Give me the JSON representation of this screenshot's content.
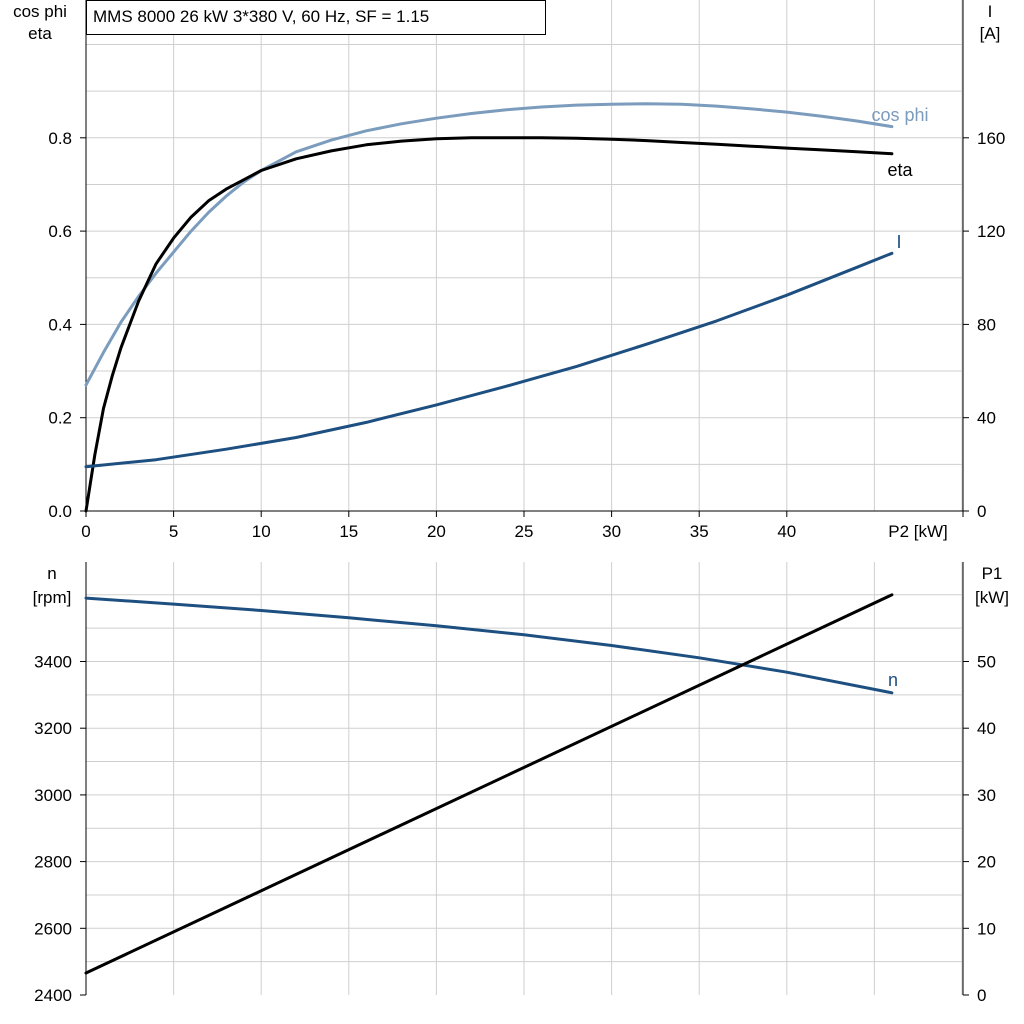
{
  "chart_data": [
    {
      "type": "line",
      "title": "MMS 8000   26 kW   3*380 V, 60 Hz, SF = 1.15",
      "xlabel": "P2 [kW]",
      "xlim": [
        0,
        50
      ],
      "x_ticks": [
        "0",
        "5",
        "10",
        "15",
        "20",
        "25",
        "30",
        "35",
        "40"
      ],
      "ylabel_left": [
        "cos phi",
        "eta"
      ],
      "ylim_left": [
        0,
        1.0
      ],
      "y_ticks_left": [
        "0.0",
        "0.2",
        "0.4",
        "0.6",
        "0.8"
      ],
      "ylabel_right": [
        "I",
        "[A]"
      ],
      "ylim_right": [
        0,
        200
      ],
      "y_ticks_right": [
        "0",
        "40",
        "80",
        "120",
        "160"
      ],
      "grid": true,
      "series": [
        {
          "name": "cos phi",
          "axis": "left",
          "color": "#7b9cbc",
          "x": [
            0,
            1,
            2,
            3,
            4,
            5,
            6,
            7,
            8,
            9,
            10,
            12,
            14,
            16,
            18,
            20,
            22,
            24,
            26,
            28,
            30,
            32,
            34,
            36,
            38,
            40,
            42,
            44,
            46
          ],
          "y": [
            0.27,
            0.34,
            0.405,
            0.46,
            0.51,
            0.555,
            0.6,
            0.64,
            0.675,
            0.705,
            0.73,
            0.77,
            0.795,
            0.815,
            0.83,
            0.842,
            0.852,
            0.86,
            0.866,
            0.87,
            0.872,
            0.873,
            0.872,
            0.868,
            0.862,
            0.855,
            0.846,
            0.836,
            0.824
          ]
        },
        {
          "name": "eta",
          "axis": "left",
          "color": "#000000",
          "x": [
            0,
            0.5,
            1,
            1.5,
            2,
            3,
            4,
            5,
            6,
            7,
            8,
            9,
            10,
            12,
            14,
            16,
            18,
            20,
            22,
            24,
            26,
            28,
            30,
            32,
            34,
            36,
            38,
            40,
            42,
            44,
            46
          ],
          "y": [
            0,
            0.12,
            0.22,
            0.29,
            0.35,
            0.45,
            0.53,
            0.585,
            0.63,
            0.665,
            0.69,
            0.71,
            0.73,
            0.755,
            0.772,
            0.785,
            0.793,
            0.798,
            0.8,
            0.8,
            0.8,
            0.799,
            0.797,
            0.794,
            0.79,
            0.786,
            0.782,
            0.778,
            0.774,
            0.77,
            0.766
          ]
        },
        {
          "name": "I",
          "axis": "right",
          "color": "#1d4f80",
          "x": [
            0,
            4,
            8,
            12,
            16,
            20,
            24,
            28,
            32,
            36,
            40,
            44,
            46
          ],
          "y": [
            19,
            22,
            26.5,
            31.5,
            38,
            45.5,
            53.5,
            62,
            71.5,
            81.5,
            92.5,
            104.5,
            110.5
          ]
        }
      ]
    },
    {
      "type": "line",
      "xlim": [
        0,
        50
      ],
      "ylabel_left": [
        "n",
        "[rpm]"
      ],
      "ylim_left": [
        2400,
        3700
      ],
      "y_ticks_left": [
        "2400",
        "2600",
        "2800",
        "3000",
        "3200",
        "3400"
      ],
      "ylabel_right": [
        "P1",
        "[kW]"
      ],
      "ylim_right": [
        0,
        65
      ],
      "y_ticks_right": [
        "0",
        "10",
        "20",
        "30",
        "40",
        "50"
      ],
      "grid": true,
      "series": [
        {
          "name": "n",
          "axis": "left",
          "color": "#1d4f80",
          "x": [
            0,
            5,
            10,
            15,
            20,
            25,
            30,
            35,
            40,
            46
          ],
          "y": [
            3590,
            3572,
            3553,
            3531,
            3507,
            3480,
            3448,
            3411,
            3368,
            3306
          ]
        },
        {
          "axis": "right",
          "color": "#000000",
          "x": [
            0,
            46
          ],
          "y": [
            3.3,
            60
          ]
        }
      ]
    }
  ]
}
